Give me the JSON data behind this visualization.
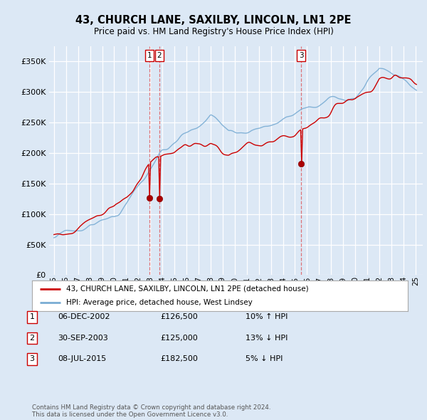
{
  "title": "43, CHURCH LANE, SAXILBY, LINCOLN, LN1 2PE",
  "subtitle": "Price paid vs. HM Land Registry's House Price Index (HPI)",
  "legend_label_red": "43, CHURCH LANE, SAXILBY, LINCOLN, LN1 2PE (detached house)",
  "legend_label_blue": "HPI: Average price, detached house, West Lindsey",
  "footer": "Contains HM Land Registry data © Crown copyright and database right 2024.\nThis data is licensed under the Open Government Licence v3.0.",
  "transactions": [
    {
      "num": 1,
      "date": "06-DEC-2002",
      "price": "£126,500",
      "hpi_rel": "10% ↑ HPI",
      "year_x": 2002.92,
      "price_val": 126500
    },
    {
      "num": 2,
      "date": "30-SEP-2003",
      "price": "£125,000",
      "hpi_rel": "13% ↓ HPI",
      "year_x": 2003.75,
      "price_val": 125000
    },
    {
      "num": 3,
      "date": "08-JUL-2015",
      "price": "£182,500",
      "hpi_rel": "5% ↓ HPI",
      "year_x": 2015.52,
      "price_val": 182500
    }
  ],
  "vline_positions": [
    2002.92,
    2003.75,
    2015.52
  ],
  "ylim": [
    0,
    375000
  ],
  "yticks": [
    0,
    50000,
    100000,
    150000,
    200000,
    250000,
    300000,
    350000
  ],
  "xlim_start": 1994.6,
  "xlim_end": 2025.6,
  "background_color": "#dce8f5",
  "plot_bg_color": "#dce8f5",
  "grid_color": "#ffffff",
  "red_color": "#cc0000",
  "blue_color": "#7aadd4"
}
